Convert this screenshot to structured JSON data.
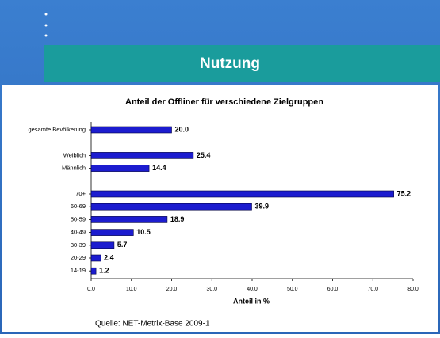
{
  "slide_title": "Nutzung",
  "source": "Quelle: NET-Metrix-Base 2009-1",
  "chart_data": {
    "type": "bar",
    "orientation": "horizontal",
    "title": "Anteil der Offliner für verschiedene Zielgruppen",
    "x_label": "Anteil in %",
    "categories": [
      "gesamte Bevölkerung",
      null,
      "Weiblich",
      "Männlich",
      null,
      "70+",
      "60-69",
      "50-59",
      "40-49",
      "30-39",
      "20-29",
      "14-19"
    ],
    "values": [
      20.0,
      null,
      25.4,
      14.4,
      null,
      75.2,
      39.9,
      18.9,
      10.5,
      5.7,
      2.4,
      1.2
    ],
    "value_labels": [
      "20.0",
      null,
      "25.4",
      "14.4",
      null,
      "75.2",
      "39.9",
      "18.9",
      "10.5",
      "5.7",
      "2.4",
      "1.2"
    ],
    "color": "#1c1ccf",
    "xlim": [
      0,
      80
    ],
    "xticks": [
      {
        "value": 0,
        "label": "0.0"
      },
      {
        "value": 10,
        "label": "10.0"
      },
      {
        "value": 20,
        "label": "20.0"
      },
      {
        "value": 30,
        "label": "30.0"
      },
      {
        "value": 40,
        "label": "40.0"
      },
      {
        "value": 50,
        "label": "50.0"
      },
      {
        "value": 60,
        "label": "60.0"
      },
      {
        "value": 70,
        "label": "70.0"
      },
      {
        "value": 80,
        "label": "80.0"
      }
    ]
  }
}
